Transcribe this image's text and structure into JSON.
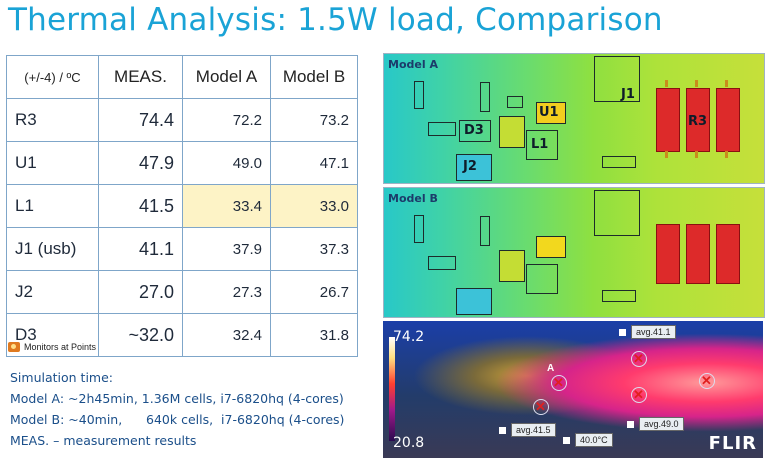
{
  "title": "Thermal Analysis: 1.5W load, Comparison",
  "table": {
    "headers": [
      "(+/-4) / ºC",
      "MEAS.",
      "Model A",
      "Model B"
    ],
    "rows": [
      {
        "name": "R3",
        "meas": "74.4",
        "a": "72.2",
        "b": "73.2"
      },
      {
        "name": "U1",
        "meas": "47.9",
        "a": "49.0",
        "b": "47.1"
      },
      {
        "name": "L1",
        "meas": "41.5",
        "a": "33.4",
        "b": "33.0"
      },
      {
        "name": "J1 (usb)",
        "meas": "41.1",
        "a": "37.9",
        "b": "37.3"
      },
      {
        "name": "J2",
        "meas": "27.0",
        "a": "27.3",
        "b": "26.7"
      },
      {
        "name": "D3",
        "meas": "~32.0",
        "a": "32.4",
        "b": "31.8"
      }
    ]
  },
  "monitor_caption": "Monitors at Points",
  "notes": [
    "Simulation time:",
    "Model A: ~2h45min, 1.36M cells, i7-6820hq (4-cores)",
    "Model B: ~40min,      640k cells,  i7-6820hq (4-cores)",
    "MEAS. – measurement results"
  ],
  "panels": {
    "a": {
      "label": "Model A",
      "labels": [
        "J1",
        "U1",
        "D3",
        "L1",
        "J2",
        "R3"
      ]
    },
    "b": {
      "label": "Model B"
    }
  },
  "flir": {
    "scale_max": "74.2",
    "scale_min": "20.8",
    "tags": [
      "avg.41.1",
      "avg.41.5",
      "40.0°C",
      "avg.49.0"
    ],
    "letter": "A",
    "logo": "FLIR"
  },
  "colors": {
    "title": "#1aa3d6",
    "highlight": "#fdf3c6",
    "notes": "#1b4f8a"
  }
}
